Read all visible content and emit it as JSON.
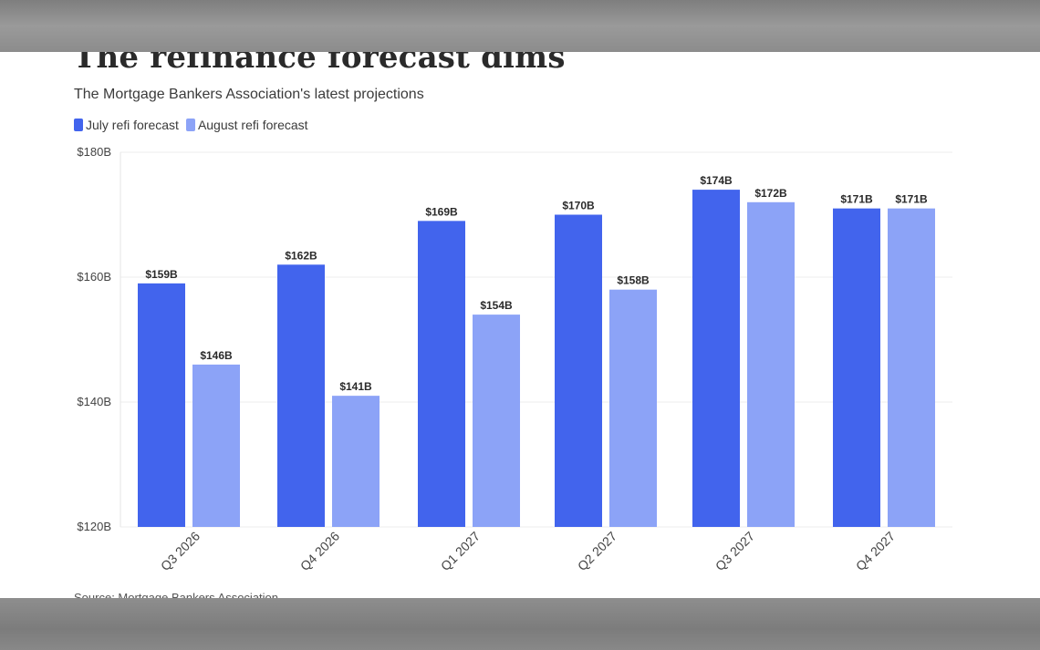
{
  "chart_data": {
    "type": "bar",
    "title": "The refinance forecast dims",
    "subtitle": "The Mortgage Bankers Association's latest projections",
    "source": "Source: Mortgage Bankers Association",
    "categories": [
      "Q3 2026",
      "Q4 2026",
      "Q1 2027",
      "Q2 2027",
      "Q3 2027",
      "Q4 2027"
    ],
    "series": [
      {
        "name": "July refi forecast",
        "color": "#4264ED",
        "values": [
          159,
          162,
          169,
          170,
          174,
          171
        ],
        "labels": [
          "$159B",
          "$162B",
          "$169B",
          "$170B",
          "$174B",
          "$171B"
        ]
      },
      {
        "name": "August refi forecast",
        "color": "#8CA3F7",
        "values": [
          146,
          141,
          154,
          158,
          172,
          171
        ],
        "labels": [
          "$146B",
          "$141B",
          "$154B",
          "$158B",
          "$172B",
          "$171B"
        ]
      }
    ],
    "ylim": [
      120,
      180
    ],
    "yticks": [
      120,
      140,
      160,
      180
    ],
    "ytick_labels": [
      "$120B",
      "$140B",
      "$160B",
      "$180B"
    ],
    "legend_position": "top-left",
    "grid": true
  }
}
